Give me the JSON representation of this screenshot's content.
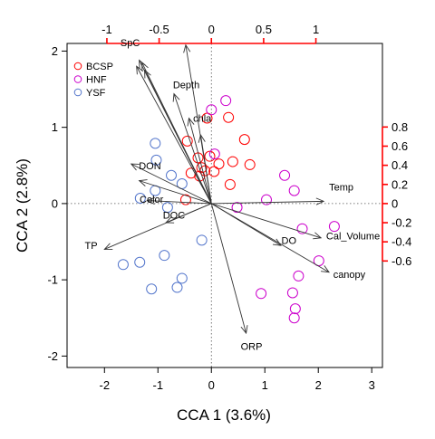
{
  "chart_data": {
    "type": "scatter",
    "xlabel": "CCA 1 (3.6%)",
    "ylabel": "CCA 2 (2.8%)",
    "xlim": [
      -2.7,
      3.2
    ],
    "ylim": [
      -2.15,
      2.1
    ],
    "x_ticks": [
      "-2",
      "-1",
      "0",
      "1",
      "2",
      "3"
    ],
    "x_tick_values": [
      -2,
      -1,
      0,
      1,
      2,
      3
    ],
    "y_ticks": [
      "-2",
      "-1",
      "0",
      "1",
      "2"
    ],
    "y_tick_values": [
      -2,
      -1,
      0,
      1,
      2
    ],
    "secondary_x": {
      "scale_factor": 1.955,
      "ticks": [
        "-1",
        "-0.5",
        "0",
        "0.5",
        "1"
      ],
      "values": [
        -1,
        -0.5,
        0,
        0.5,
        1
      ],
      "color": "#ff0000"
    },
    "secondary_y": {
      "scale_factor": 1.255,
      "ticks": [
        "-0.6",
        "-0.4",
        "-0.2",
        "0",
        "0.2",
        "0.4",
        "0.6",
        "0.8"
      ],
      "values": [
        -0.6,
        -0.4,
        -0.2,
        0,
        0.2,
        0.4,
        0.6,
        0.8
      ],
      "color": "#ff0000"
    },
    "reference_lines": {
      "x": 0,
      "y": 0,
      "style": "dotted"
    },
    "legend": {
      "placement": "top-left",
      "entries": [
        {
          "name": "BCSP",
          "color": "#ff0000"
        },
        {
          "name": "HNF",
          "color": "#cc00cc"
        },
        {
          "name": "YSF",
          "color": "#5577cc"
        }
      ]
    },
    "series": [
      {
        "name": "BCSP",
        "color": "#ff0000",
        "points": [
          [
            -0.45,
            0.82
          ],
          [
            -0.08,
            1.12
          ],
          [
            0.32,
            1.13
          ],
          [
            0.62,
            0.84
          ],
          [
            -0.25,
            0.6
          ],
          [
            0.4,
            0.55
          ],
          [
            -0.18,
            0.47
          ],
          [
            -0.12,
            0.43
          ],
          [
            0.14,
            0.52
          ],
          [
            0.05,
            0.42
          ],
          [
            0.72,
            0.51
          ],
          [
            -0.38,
            0.4
          ],
          [
            -0.22,
            0.36
          ],
          [
            0.35,
            0.25
          ],
          [
            -0.48,
            0.05
          ],
          [
            -0.03,
            0.62
          ]
        ]
      },
      {
        "name": "HNF",
        "color": "#cc00cc",
        "points": [
          [
            0.27,
            1.35
          ],
          [
            0.0,
            1.23
          ],
          [
            1.37,
            0.37
          ],
          [
            1.55,
            0.17
          ],
          [
            0.06,
            0.65
          ],
          [
            0.48,
            -0.05
          ],
          [
            1.03,
            0.05
          ],
          [
            1.7,
            -0.33
          ],
          [
            2.3,
            -0.3
          ],
          [
            2.01,
            -0.75
          ],
          [
            1.63,
            -0.95
          ],
          [
            0.93,
            -1.18
          ],
          [
            1.52,
            -1.17
          ],
          [
            1.57,
            -1.38
          ],
          [
            1.55,
            -1.5
          ]
        ]
      },
      {
        "name": "YSF",
        "color": "#5577cc",
        "points": [
          [
            -1.05,
            0.79
          ],
          [
            -1.03,
            0.57
          ],
          [
            -0.75,
            0.37
          ],
          [
            -0.55,
            0.26
          ],
          [
            -1.05,
            0.17
          ],
          [
            -1.33,
            0.07
          ],
          [
            -0.82,
            -0.05
          ],
          [
            -1.65,
            -0.8
          ],
          [
            -1.34,
            -0.77
          ],
          [
            -0.88,
            -0.68
          ],
          [
            -0.55,
            -0.98
          ],
          [
            -0.64,
            -1.1
          ],
          [
            -1.12,
            -1.12
          ],
          [
            -0.18,
            -0.48
          ]
        ]
      }
    ],
    "biplot_arrows": [
      {
        "label": "SpC",
        "end": [
          -1.35,
          1.88
        ],
        "label_at": [
          -1.52,
          2.11
        ]
      },
      {
        "label": "",
        "end": [
          -1.3,
          1.85
        ]
      },
      {
        "label": "",
        "end": [
          -1.4,
          1.8
        ]
      },
      {
        "label": "",
        "end": [
          -1.25,
          1.75
        ]
      },
      {
        "label": "",
        "end": [
          -0.48,
          2.08
        ]
      },
      {
        "label": "Depth",
        "end": [
          -0.7,
          1.44
        ],
        "label_at": [
          -0.47,
          1.56
        ]
      },
      {
        "label": "chla",
        "end": [
          -0.42,
          1.12
        ],
        "label_at": [
          -0.17,
          1.12
        ]
      },
      {
        "label": "",
        "end": [
          -0.2,
          0.9
        ]
      },
      {
        "label": "DON",
        "end": [
          -1.5,
          0.52
        ],
        "label_at": [
          -1.15,
          0.5
        ]
      },
      {
        "label": "",
        "end": [
          -1.35,
          0.3
        ]
      },
      {
        "label": "Color",
        "end": [
          -1.2,
          0.04
        ],
        "label_at": [
          -1.12,
          0.06
        ]
      },
      {
        "label": "DOC",
        "end": [
          -0.85,
          -0.25
        ],
        "label_at": [
          -0.7,
          -0.15
        ]
      },
      {
        "label": "TP",
        "end": [
          -2.0,
          -0.6
        ],
        "label_at": [
          -2.25,
          -0.55
        ]
      },
      {
        "label": "Temp",
        "end": [
          2.1,
          0.03
        ],
        "label_at": [
          2.43,
          0.22
        ]
      },
      {
        "label": "DO",
        "end": [
          1.3,
          -0.55
        ],
        "label_at": [
          1.45,
          -0.48
        ]
      },
      {
        "label": "Cal_Volume",
        "end": [
          2.05,
          -0.45
        ],
        "label_at": [
          2.65,
          -0.42
        ]
      },
      {
        "label": "canopy",
        "end": [
          2.2,
          -0.9
        ],
        "label_at": [
          2.58,
          -0.93
        ]
      },
      {
        "label": "ORP",
        "end": [
          0.65,
          -1.7
        ],
        "label_at": [
          0.75,
          -1.87
        ]
      }
    ]
  }
}
